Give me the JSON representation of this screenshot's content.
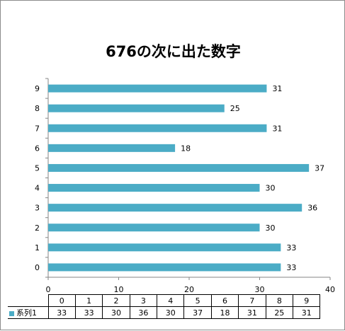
{
  "chart_data": {
    "type": "bar",
    "orientation": "horizontal",
    "title": "676の次に出た数字",
    "categories": [
      "0",
      "1",
      "2",
      "3",
      "4",
      "5",
      "6",
      "7",
      "8",
      "9"
    ],
    "series": [
      {
        "name": "系列1",
        "values": [
          33,
          33,
          30,
          36,
          30,
          37,
          18,
          31,
          25,
          31
        ],
        "color": "#4bacc6"
      }
    ],
    "xlim": [
      0,
      40
    ],
    "x_ticks": [
      "0",
      "10",
      "20",
      "30",
      "40"
    ],
    "xlabel": "",
    "ylabel": "",
    "grid": false,
    "legend": "data-table",
    "data_labels": true
  }
}
